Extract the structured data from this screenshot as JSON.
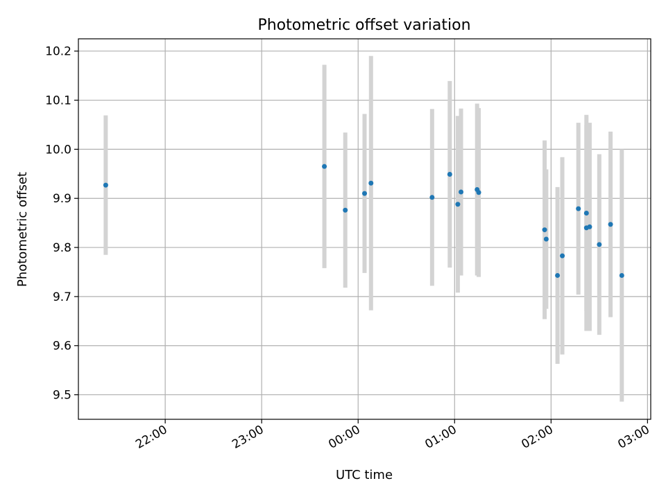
{
  "chart_data": {
    "type": "scatter",
    "title": "Photometric offset variation",
    "xlabel": "UTC time",
    "ylabel": "Photometric offset",
    "grid": true,
    "x_unit": "UTC time (HH:MM)",
    "xlim": [
      "21:06",
      "03:02"
    ],
    "ylim": [
      9.45,
      10.225
    ],
    "x_ticks": [
      "22:00",
      "23:00",
      "00:00",
      "01:00",
      "02:00",
      "03:00"
    ],
    "y_ticks": [
      9.5,
      9.6,
      9.7,
      9.8,
      9.9,
      10.0,
      10.1,
      10.2
    ],
    "colors": {
      "marker": "#1f77b4",
      "errorbar": "#d3d3d3"
    },
    "series": [
      {
        "points": [
          {
            "x": "21:23",
            "y": 9.927,
            "err": 0.142
          },
          {
            "x": "23:39",
            "y": 9.965,
            "err": 0.207
          },
          {
            "x": "23:52",
            "y": 9.876,
            "err": 0.158
          },
          {
            "x": "00:04",
            "y": 9.91,
            "err": 0.162
          },
          {
            "x": "00:08",
            "y": 9.931,
            "err": 0.259
          },
          {
            "x": "00:46",
            "y": 9.902,
            "err": 0.18
          },
          {
            "x": "00:57",
            "y": 9.949,
            "err": 0.19
          },
          {
            "x": "01:02",
            "y": 9.888,
            "err": 0.18
          },
          {
            "x": "01:04",
            "y": 9.913,
            "err": 0.17
          },
          {
            "x": "01:14",
            "y": 9.918,
            "err": 0.175
          },
          {
            "x": "01:15",
            "y": 9.912,
            "err": 0.172
          },
          {
            "x": "01:56",
            "y": 9.836,
            "err": 0.182
          },
          {
            "x": "01:57",
            "y": 9.817,
            "err": 0.142
          },
          {
            "x": "02:04",
            "y": 9.743,
            "err": 0.18
          },
          {
            "x": "02:07",
            "y": 9.783,
            "err": 0.201
          },
          {
            "x": "02:17",
            "y": 9.879,
            "err": 0.175
          },
          {
            "x": "02:22",
            "y": 9.84,
            "err": 0.21
          },
          {
            "x": "02:22",
            "y": 9.87,
            "err": 0.2
          },
          {
            "x": "02:24",
            "y": 9.842,
            "err": 0.212
          },
          {
            "x": "02:30",
            "y": 9.806,
            "err": 0.184
          },
          {
            "x": "02:37",
            "y": 9.847,
            "err": 0.189
          },
          {
            "x": "02:44",
            "y": 9.743,
            "err": 0.257
          }
        ]
      }
    ]
  }
}
